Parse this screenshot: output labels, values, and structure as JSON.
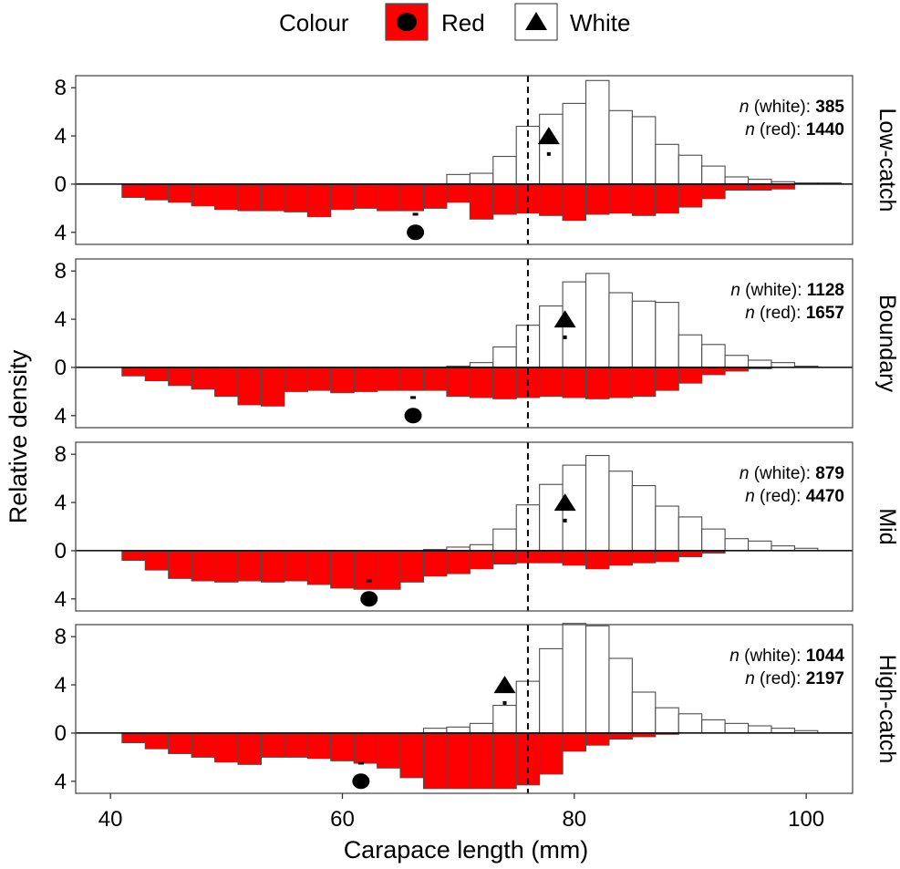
{
  "chart_data": {
    "type": "bar",
    "xlabel": "Carapace length (mm)",
    "ylabel": "Relative density",
    "xlim": [
      37,
      104
    ],
    "xticks": [
      40,
      60,
      80,
      100
    ],
    "ylim_up": 9,
    "ylim_down": 5,
    "yticks": [
      {
        "value": 8,
        "label": "8"
      },
      {
        "value": 4,
        "label": "4"
      },
      {
        "value": 0,
        "label": "0"
      },
      {
        "value": -4,
        "label": "4"
      }
    ],
    "reference_line_x": 76,
    "bin_start": 41,
    "bin_width": 2,
    "legend": {
      "title": "Colour",
      "entries": [
        {
          "label": "Red",
          "marker": "circle",
          "fill": "#ff0000"
        },
        {
          "label": "White",
          "marker": "triangle",
          "fill": "#ffffff"
        }
      ]
    },
    "colors": {
      "red": "#ff0000",
      "white": "#ffffff",
      "outline": "#4d4d4d",
      "panel_border": "#4d4d4d"
    },
    "panels": [
      {
        "name": "Low-catch",
        "n_white_label": "(white):",
        "n_white_value": "385",
        "n_red_label": "(red):",
        "n_red_value": "1440",
        "white": [
          0,
          0,
          0,
          0,
          0,
          0,
          0,
          0,
          0,
          0,
          0,
          0,
          0,
          0,
          0.8,
          0.9,
          2.3,
          4.8,
          5.8,
          6.7,
          8.6,
          6.1,
          5.6,
          3.3,
          2.4,
          1.5,
          0.6,
          0.4,
          0.2,
          0.1,
          0.1,
          0
        ],
        "red": [
          1.1,
          1.3,
          1.5,
          1.8,
          2.1,
          2.2,
          2.2,
          2.3,
          2.7,
          2.1,
          2.0,
          2.2,
          2.2,
          2.0,
          1.5,
          2.9,
          2.5,
          2.4,
          2.6,
          3.0,
          2.5,
          2.4,
          2.6,
          2.4,
          1.9,
          1.2,
          0.5,
          0.5,
          0.4,
          0,
          0,
          0
        ],
        "white_mean": 77.8,
        "white_marker_y": 4.0,
        "red_mean": 66.3,
        "red_marker_y": -4.0,
        "white_ci_y": 2.5,
        "red_ci_y": -2.5
      },
      {
        "name": "Boundary",
        "n_white_label": "(white):",
        "n_white_value": "1128",
        "n_red_label": "(red):",
        "n_red_value": "1657",
        "white": [
          0,
          0,
          0,
          0,
          0,
          0,
          0,
          0,
          0,
          0,
          0,
          0,
          0,
          0,
          0.1,
          0.4,
          1.7,
          3.5,
          5.1,
          7.1,
          7.8,
          6.2,
          5.5,
          5.4,
          2.7,
          1.9,
          1.0,
          0.6,
          0.4,
          0.1,
          0,
          0
        ],
        "red": [
          0.7,
          1.1,
          1.5,
          1.8,
          2.4,
          3.1,
          3.2,
          2.0,
          1.9,
          2.1,
          2.0,
          1.9,
          1.9,
          1.9,
          2.4,
          2.5,
          2.6,
          2.5,
          2.4,
          2.5,
          2.6,
          2.5,
          2.4,
          1.9,
          1.3,
          0.6,
          0.3,
          0.1,
          0,
          0,
          0,
          0
        ],
        "white_mean": 79.2,
        "white_marker_y": 4.0,
        "red_mean": 66.1,
        "red_marker_y": -4.0,
        "white_ci_y": 2.5,
        "red_ci_y": -2.5
      },
      {
        "name": "Mid",
        "n_white_label": "(white):",
        "n_white_value": "879",
        "n_red_label": "(red):",
        "n_red_value": "4470",
        "white": [
          0,
          0,
          0,
          0,
          0,
          0,
          0,
          0,
          0,
          0,
          0,
          0,
          0,
          0.1,
          0.3,
          0.5,
          1.8,
          3.8,
          5.5,
          7.1,
          7.9,
          6.6,
          5.4,
          3.7,
          2.8,
          1.8,
          1.0,
          0.8,
          0.4,
          0.2,
          0,
          0
        ],
        "red": [
          0.8,
          1.6,
          2.3,
          2.5,
          2.6,
          2.5,
          2.6,
          2.5,
          2.8,
          3.1,
          3.2,
          3.2,
          2.6,
          2.1,
          1.9,
          1.5,
          1.1,
          1.0,
          1.0,
          1.2,
          1.5,
          1.2,
          1.0,
          0.9,
          0.5,
          0.2,
          0,
          0,
          0,
          0,
          0,
          0
        ],
        "white_mean": 79.2,
        "white_marker_y": 4.0,
        "red_mean": 62.3,
        "red_marker_y": -4.0,
        "white_ci_y": 2.5,
        "red_ci_y": -2.5
      },
      {
        "name": "High-catch",
        "n_white_label": "(white):",
        "n_white_value": "1044",
        "n_red_label": "(red):",
        "n_red_value": "2197",
        "white": [
          0,
          0,
          0,
          0,
          0,
          0,
          0,
          0,
          0,
          0,
          0,
          0,
          0,
          0.4,
          0.5,
          0.8,
          2.3,
          4.3,
          7.0,
          9.1,
          8.9,
          6.2,
          3.4,
          2.1,
          1.6,
          1.1,
          0.8,
          0.6,
          0.4,
          0.2,
          0,
          0
        ],
        "red": [
          0.8,
          1.3,
          1.7,
          2.0,
          2.4,
          2.6,
          2.0,
          2.0,
          2.1,
          2.3,
          2.5,
          2.9,
          3.7,
          4.6,
          4.6,
          4.6,
          4.6,
          4.3,
          3.4,
          1.5,
          1.0,
          0.5,
          0.3,
          0.1,
          0,
          0,
          0,
          0,
          0,
          0,
          0,
          0
        ],
        "white_mean": 74.0,
        "white_marker_y": 4.0,
        "red_mean": 61.6,
        "red_marker_y": -4.0,
        "white_ci_y": 2.5,
        "red_ci_y": -2.5
      }
    ]
  }
}
